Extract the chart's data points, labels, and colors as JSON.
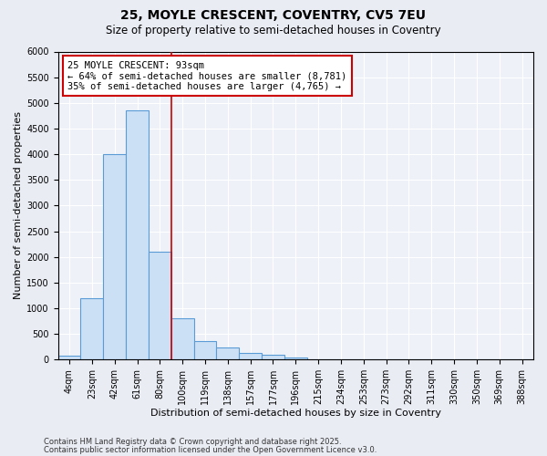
{
  "title1": "25, MOYLE CRESCENT, COVENTRY, CV5 7EU",
  "title2": "Size of property relative to semi-detached houses in Coventry",
  "xlabel": "Distribution of semi-detached houses by size in Coventry",
  "ylabel": "Number of semi-detached properties",
  "categories": [
    "4sqm",
    "23sqm",
    "42sqm",
    "61sqm",
    "80sqm",
    "100sqm",
    "119sqm",
    "138sqm",
    "157sqm",
    "177sqm",
    "196sqm",
    "215sqm",
    "234sqm",
    "253sqm",
    "273sqm",
    "292sqm",
    "311sqm",
    "330sqm",
    "350sqm",
    "369sqm",
    "388sqm"
  ],
  "values": [
    80,
    1200,
    4000,
    4850,
    2100,
    800,
    360,
    230,
    130,
    90,
    40,
    0,
    0,
    0,
    0,
    0,
    0,
    0,
    0,
    0,
    0
  ],
  "bar_color": "#cce0f5",
  "bar_edge_color": "#5b9bd5",
  "vline_color": "#cc0000",
  "annotation_line1": "25 MOYLE CRESCENT: 93sqm",
  "annotation_line2": "← 64% of semi-detached houses are smaller (8,781)",
  "annotation_line3": "35% of semi-detached houses are larger (4,765) →",
  "annotation_box_color": "#ffffff",
  "annotation_box_edge": "#cc0000",
  "ylim": [
    0,
    6000
  ],
  "yticks": [
    0,
    500,
    1000,
    1500,
    2000,
    2500,
    3000,
    3500,
    4000,
    4500,
    5000,
    5500,
    6000
  ],
  "footer1": "Contains HM Land Registry data © Crown copyright and database right 2025.",
  "footer2": "Contains public sector information licensed under the Open Government Licence v3.0.",
  "bg_color": "#eaecf4",
  "plot_bg_color": "#eef2f8",
  "title_fontsize": 10,
  "subtitle_fontsize": 8.5,
  "tick_fontsize": 7,
  "label_fontsize": 8,
  "annotation_fontsize": 7.5,
  "footer_fontsize": 6
}
